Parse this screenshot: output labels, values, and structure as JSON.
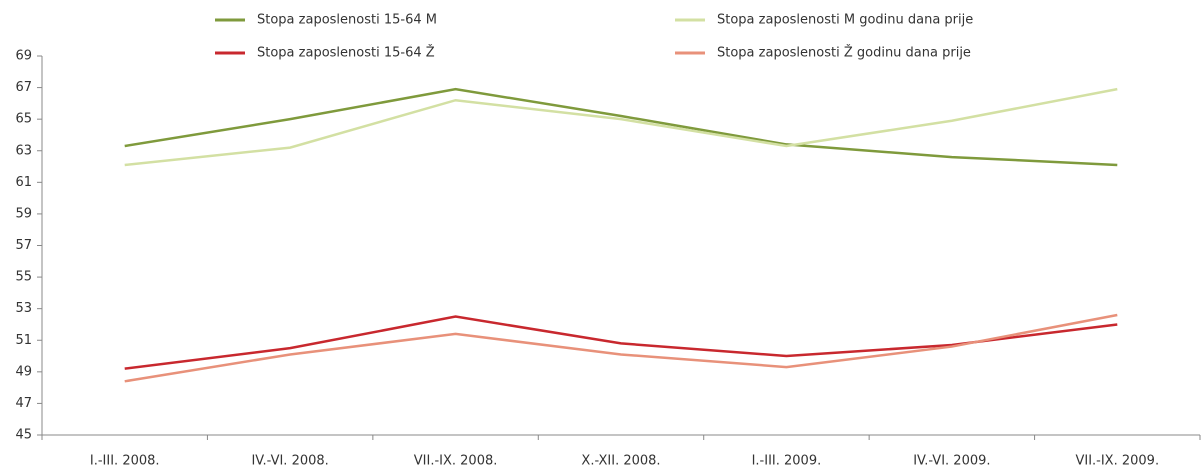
{
  "chart_data": {
    "type": "line",
    "categories": [
      "I.-III. 2008.",
      "IV.-VI. 2008.",
      "VII.-IX. 2008.",
      "X.-XII. 2008.",
      "I.-III. 2009.",
      "IV.-VI. 2009.",
      "VII.-IX. 2009."
    ],
    "series": [
      {
        "name": "Stopa zaposlenosti 15-64 M",
        "color": "#7f9a3c",
        "values": [
          63.3,
          65.0,
          66.9,
          65.2,
          63.4,
          62.6,
          62.1
        ]
      },
      {
        "name": "Stopa zaposlenosti M godinu dana prije",
        "color": "#d3e0a3",
        "values": [
          62.1,
          63.2,
          66.2,
          65.0,
          63.3,
          64.9,
          66.9
        ]
      },
      {
        "name": "Stopa zaposlenosti 15-64 Ž",
        "color": "#c8282e",
        "values": [
          49.2,
          50.5,
          52.5,
          50.8,
          50.0,
          50.7,
          52.0
        ]
      },
      {
        "name": "Stopa zaposlenosti Ž godinu dana prije",
        "color": "#e8917a",
        "values": [
          48.4,
          50.1,
          51.4,
          50.1,
          49.3,
          50.6,
          52.6
        ]
      }
    ],
    "ylim": [
      45,
      69
    ],
    "yticks": [
      45,
      47,
      49,
      51,
      53,
      55,
      57,
      59,
      61,
      63,
      65,
      67,
      69
    ],
    "legend": "top"
  }
}
